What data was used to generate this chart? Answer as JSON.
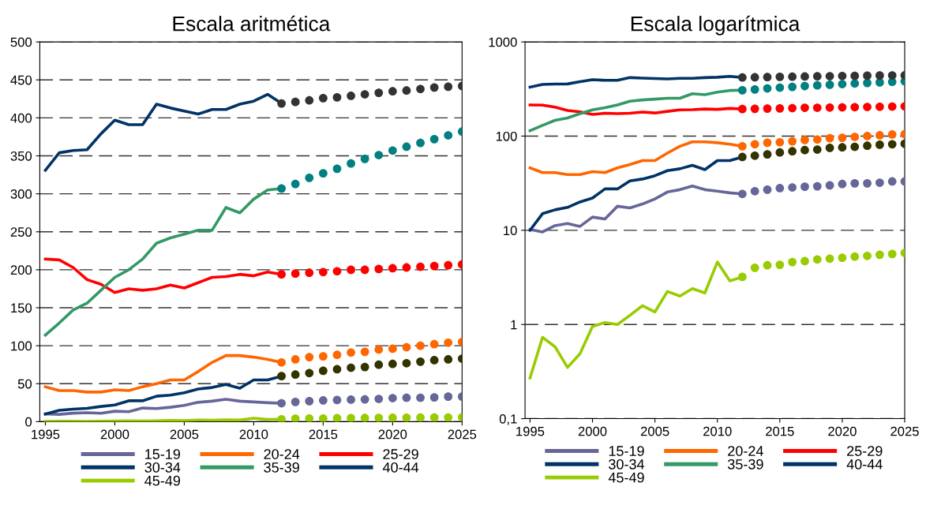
{
  "chart_data": [
    {
      "type": "line",
      "title": "Escala aritmética",
      "x": [
        1995,
        1996,
        1997,
        1998,
        1999,
        2000,
        2001,
        2002,
        2003,
        2004,
        2005,
        2006,
        2007,
        2008,
        2009,
        2010,
        2011,
        2012
      ],
      "xlim": [
        1994.6,
        2025
      ],
      "xticks": [
        1995,
        2000,
        2005,
        2010,
        2015,
        2020,
        2025
      ],
      "ylim": [
        0,
        500
      ],
      "yticks": [
        0,
        50,
        100,
        150,
        200,
        250,
        300,
        350,
        400,
        450,
        500
      ],
      "grid": "y",
      "line_style": "solid",
      "legend": "bottom",
      "series": [
        {
          "name": "15-19",
          "color": "#666699",
          "values": [
            10.2,
            9.6,
            11.2,
            11.8,
            11,
            13.8,
            13.2,
            18,
            17.3,
            19,
            21.5,
            25.5,
            27,
            29.5,
            27,
            26,
            25,
            24.3
          ]
        },
        {
          "name": "20-24",
          "color": "#ff6600",
          "values": [
            46,
            41,
            41,
            39,
            39,
            42,
            41,
            46,
            50,
            55,
            55,
            66,
            78,
            87,
            87,
            85,
            82,
            78
          ]
        },
        {
          "name": "25-29",
          "color": "#ff0000",
          "values": [
            214,
            213,
            203,
            187,
            181,
            170,
            175,
            173,
            175,
            180,
            176,
            183,
            190,
            191,
            194,
            192,
            197,
            194
          ]
        },
        {
          "name": "30-34",
          "color": "#003366",
          "values": [
            10,
            15,
            16.5,
            17.5,
            20,
            22,
            27.5,
            27.5,
            33.5,
            35,
            38,
            43,
            45,
            49,
            44,
            55,
            55,
            60
          ]
        },
        {
          "name": "35-39",
          "color": "#339966",
          "values": [
            114,
            130,
            147,
            156,
            173,
            190,
            200,
            214,
            235,
            242,
            247,
            252,
            252,
            282,
            275,
            293,
            305,
            307
          ]
        },
        {
          "name": "40-44",
          "color": "#003366",
          "values": [
            331,
            354,
            357,
            358,
            379,
            397,
            391,
            391,
            418,
            413,
            409,
            405,
            411,
            411,
            418,
            422,
            431,
            419
          ]
        },
        {
          "name": "45-49",
          "color": "#99cc00",
          "values": [
            0.27,
            0.73,
            0.58,
            0.35,
            0.49,
            0.95,
            1.05,
            1.0,
            1.25,
            1.58,
            1.36,
            2.24,
            2.0,
            2.4,
            2.16,
            4.6,
            2.9,
            3.2
          ]
        },
        {
          "type": "scatter",
          "marker": "circle",
          "color": "#666699",
          "x": [
            2012,
            2013,
            2014,
            2015,
            2016,
            2017,
            2018,
            2019,
            2020,
            2021,
            2022,
            2023,
            2024,
            2025
          ],
          "values": [
            24.3,
            26,
            27,
            28,
            28.5,
            29,
            29.3,
            30,
            31,
            31.5,
            31.5,
            32,
            33,
            33
          ]
        },
        {
          "type": "scatter",
          "marker": "circle",
          "color": "#ff6600",
          "x": [
            2012,
            2013,
            2014,
            2015,
            2016,
            2017,
            2018,
            2019,
            2020,
            2021,
            2022,
            2023,
            2024,
            2025
          ],
          "values": [
            78,
            82,
            85,
            86,
            88,
            91,
            92,
            95,
            96,
            98,
            100,
            102,
            104,
            105
          ]
        },
        {
          "type": "scatter",
          "marker": "circle",
          "color": "#ff0000",
          "x": [
            2012,
            2013,
            2014,
            2015,
            2016,
            2017,
            2018,
            2019,
            2020,
            2021,
            2022,
            2023,
            2024,
            2025
          ],
          "values": [
            194,
            195,
            196,
            197,
            198,
            200,
            200,
            201,
            202,
            203,
            204,
            205,
            206,
            207
          ]
        },
        {
          "type": "scatter",
          "marker": "circle",
          "color": "#333300",
          "x": [
            2012,
            2013,
            2014,
            2015,
            2016,
            2017,
            2018,
            2019,
            2020,
            2021,
            2022,
            2023,
            2024,
            2025
          ],
          "values": [
            60,
            62,
            64,
            67,
            69,
            71,
            72,
            75,
            76,
            77,
            79,
            81,
            82,
            83
          ]
        },
        {
          "type": "scatter",
          "marker": "circle",
          "color": "#008080",
          "x": [
            2012,
            2013,
            2014,
            2015,
            2016,
            2017,
            2018,
            2019,
            2020,
            2021,
            2022,
            2023,
            2024,
            2025
          ],
          "values": [
            307,
            313,
            321,
            327,
            333,
            340,
            346,
            351,
            357,
            362,
            367,
            372,
            377,
            382
          ]
        },
        {
          "type": "scatter",
          "marker": "circle",
          "color": "#333333",
          "x": [
            2012,
            2013,
            2014,
            2015,
            2016,
            2017,
            2018,
            2019,
            2020,
            2021,
            2022,
            2023,
            2024,
            2025
          ],
          "values": [
            419,
            421,
            423,
            426,
            427,
            429,
            431,
            433,
            435,
            436,
            438,
            440,
            441,
            442
          ]
        },
        {
          "type": "scatter",
          "marker": "circle",
          "color": "#99cc00",
          "x": [
            2012,
            2013,
            2014,
            2015,
            2016,
            2017,
            2018,
            2019,
            2020,
            2021,
            2022,
            2023,
            2024,
            2025
          ],
          "values": [
            3.2,
            4.0,
            4.25,
            4.3,
            4.6,
            4.7,
            4.9,
            5.0,
            5.1,
            5.25,
            5.35,
            5.5,
            5.6,
            5.75
          ]
        }
      ]
    },
    {
      "type": "line",
      "title": "Escala logarítmica",
      "log": "y",
      "x": [
        1995,
        1996,
        1997,
        1998,
        1999,
        2000,
        2001,
        2002,
        2003,
        2004,
        2005,
        2006,
        2007,
        2008,
        2009,
        2010,
        2011,
        2012
      ],
      "xlim": [
        1994.6,
        2025
      ],
      "xticks": [
        1995,
        2000,
        2005,
        2010,
        2015,
        2020,
        2025
      ],
      "ylim": [
        0.1,
        1000
      ],
      "yticks": [
        {
          "value": 0.1,
          "label": "0,1"
        },
        1,
        10,
        100,
        1000
      ],
      "grid": "y",
      "line_style": "solid",
      "legend": "bottom",
      "series": [
        {
          "name": "15-19",
          "color": "#666699",
          "values": [
            10.2,
            9.6,
            11.2,
            11.8,
            11,
            13.8,
            13.2,
            18,
            17.3,
            19,
            21.5,
            25.5,
            27,
            29.5,
            27,
            26,
            25,
            24.3
          ]
        },
        {
          "name": "20-24",
          "color": "#ff6600",
          "values": [
            46,
            41,
            41,
            39,
            39,
            42,
            41,
            46,
            50,
            55,
            55,
            66,
            78,
            87,
            87,
            85,
            82,
            78
          ]
        },
        {
          "name": "25-29",
          "color": "#ff0000",
          "values": [
            214,
            213,
            203,
            187,
            181,
            170,
            175,
            173,
            175,
            180,
            176,
            183,
            190,
            191,
            194,
            192,
            197,
            194
          ]
        },
        {
          "name": "30-34",
          "color": "#003366",
          "values": [
            10,
            15,
            16.5,
            17.5,
            20,
            22,
            27.5,
            27.5,
            33.5,
            35,
            38,
            43,
            45,
            49,
            44,
            55,
            55,
            60
          ]
        },
        {
          "name": "35-39",
          "color": "#339966",
          "values": [
            114,
            130,
            147,
            156,
            173,
            190,
            200,
            214,
            235,
            242,
            247,
            252,
            252,
            282,
            275,
            293,
            305,
            307
          ]
        },
        {
          "name": "40-44",
          "color": "#003366",
          "values": [
            331,
            354,
            357,
            358,
            379,
            397,
            391,
            391,
            418,
            413,
            409,
            405,
            411,
            411,
            418,
            422,
            431,
            419
          ]
        },
        {
          "name": "45-49",
          "color": "#99cc00",
          "values": [
            0.27,
            0.73,
            0.58,
            0.35,
            0.49,
            0.95,
            1.05,
            1.0,
            1.25,
            1.58,
            1.36,
            2.24,
            2.0,
            2.4,
            2.16,
            4.6,
            2.9,
            3.2
          ]
        },
        {
          "type": "scatter",
          "marker": "circle",
          "color": "#666699",
          "x": [
            2012,
            2013,
            2014,
            2015,
            2016,
            2017,
            2018,
            2019,
            2020,
            2021,
            2022,
            2023,
            2024,
            2025
          ],
          "values": [
            24.3,
            26,
            27,
            28,
            28.5,
            29,
            29.3,
            30,
            31,
            31.5,
            31.5,
            32,
            33,
            33
          ]
        },
        {
          "type": "scatter",
          "marker": "circle",
          "color": "#ff6600",
          "x": [
            2012,
            2013,
            2014,
            2015,
            2016,
            2017,
            2018,
            2019,
            2020,
            2021,
            2022,
            2023,
            2024,
            2025
          ],
          "values": [
            78,
            82,
            85,
            86,
            88,
            91,
            92,
            95,
            96,
            98,
            100,
            102,
            104,
            105
          ]
        },
        {
          "type": "scatter",
          "marker": "circle",
          "color": "#ff0000",
          "x": [
            2012,
            2013,
            2014,
            2015,
            2016,
            2017,
            2018,
            2019,
            2020,
            2021,
            2022,
            2023,
            2024,
            2025
          ],
          "values": [
            194,
            195,
            196,
            197,
            198,
            200,
            200,
            201,
            202,
            203,
            204,
            205,
            206,
            207
          ]
        },
        {
          "type": "scatter",
          "marker": "circle",
          "color": "#333300",
          "x": [
            2012,
            2013,
            2014,
            2015,
            2016,
            2017,
            2018,
            2019,
            2020,
            2021,
            2022,
            2023,
            2024,
            2025
          ],
          "values": [
            60,
            62,
            64,
            67,
            69,
            71,
            72,
            75,
            76,
            77,
            79,
            81,
            82,
            83
          ]
        },
        {
          "type": "scatter",
          "marker": "circle",
          "color": "#008080",
          "x": [
            2012,
            2013,
            2014,
            2015,
            2016,
            2017,
            2018,
            2019,
            2020,
            2021,
            2022,
            2023,
            2024,
            2025
          ],
          "values": [
            307,
            313,
            321,
            327,
            333,
            340,
            346,
            351,
            357,
            362,
            367,
            372,
            377,
            382
          ]
        },
        {
          "type": "scatter",
          "marker": "circle",
          "color": "#333333",
          "x": [
            2012,
            2013,
            2014,
            2015,
            2016,
            2017,
            2018,
            2019,
            2020,
            2021,
            2022,
            2023,
            2024,
            2025
          ],
          "values": [
            419,
            421,
            423,
            426,
            427,
            429,
            431,
            433,
            435,
            436,
            438,
            440,
            441,
            442
          ]
        },
        {
          "type": "scatter",
          "marker": "circle",
          "color": "#99cc00",
          "x": [
            2012,
            2013,
            2014,
            2015,
            2016,
            2017,
            2018,
            2019,
            2020,
            2021,
            2022,
            2023,
            2024,
            2025
          ],
          "values": [
            3.2,
            4.0,
            4.25,
            4.3,
            4.6,
            4.7,
            4.9,
            5.0,
            5.1,
            5.25,
            5.35,
            5.5,
            5.6,
            5.75
          ]
        }
      ]
    }
  ]
}
